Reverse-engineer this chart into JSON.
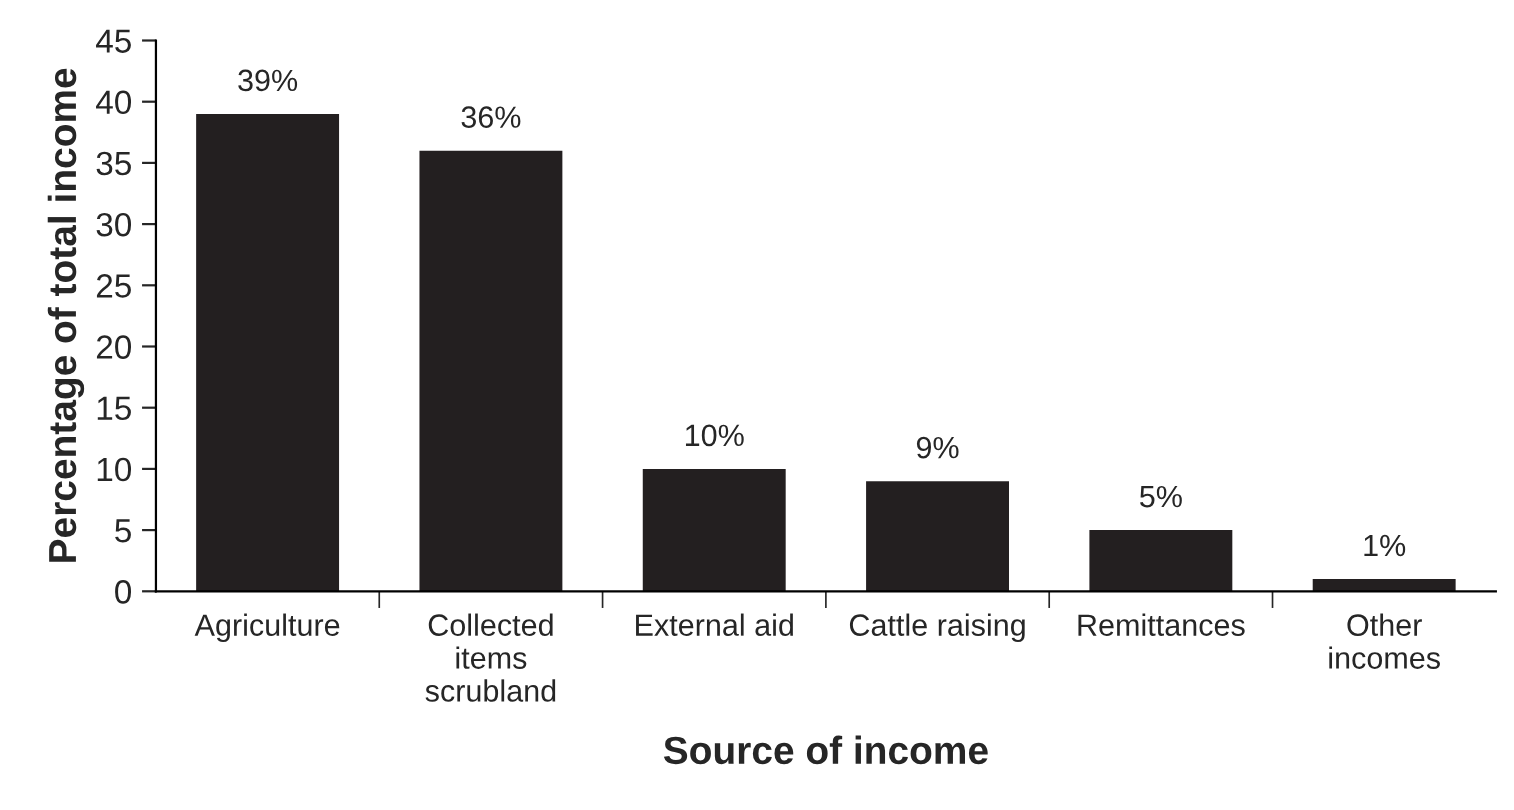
{
  "chart_data": {
    "type": "bar",
    "xlabel": "Source of income",
    "ylabel": "Percentage of total income",
    "categories": [
      "Agriculture",
      "Collected\nitems\nscrubland",
      "External aid",
      "Cattle raising",
      "Remittances",
      "Other\nincomes"
    ],
    "values": [
      39,
      36,
      10,
      9,
      5,
      1
    ],
    "value_labels": [
      "39%",
      "36%",
      "10%",
      "9%",
      "5%",
      "1%"
    ],
    "color": "#231f20",
    "ylim": [
      0,
      45
    ],
    "yticks": [
      0,
      5,
      10,
      15,
      20,
      25,
      30,
      35,
      40,
      45
    ],
    "grid": false,
    "legend": false
  }
}
